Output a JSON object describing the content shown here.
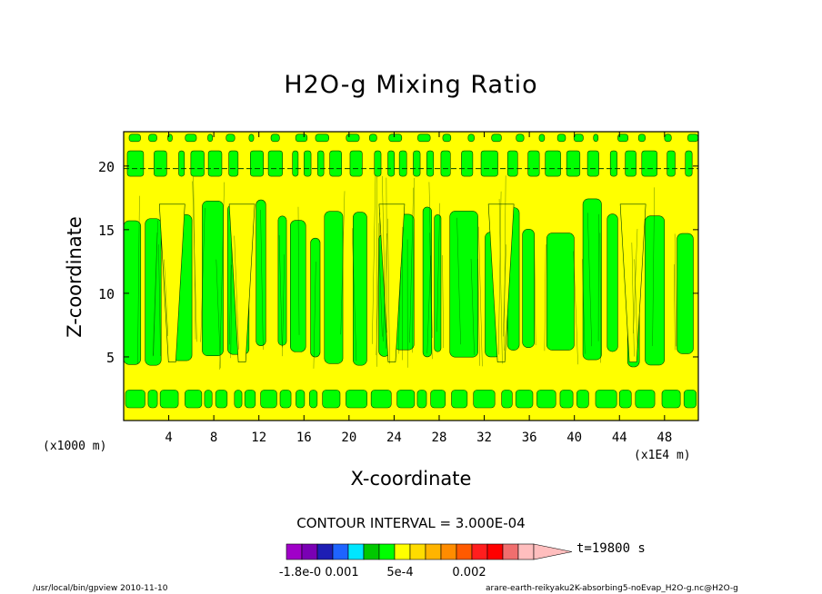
{
  "chart_data": {
    "type": "heatmap",
    "title": "H2O-g Mixing Ratio",
    "xlabel": "X-coordinate",
    "ylabel": "Z-coordinate",
    "x_unit": "(x1E4 m)",
    "y_unit": "(x1000 m)",
    "x_ticks": [
      "4",
      "8",
      "12",
      "16",
      "20",
      "24",
      "28",
      "32",
      "36",
      "40",
      "44",
      "48"
    ],
    "x_tick_values": [
      4,
      8,
      12,
      16,
      20,
      24,
      28,
      32,
      36,
      40,
      44,
      48
    ],
    "y_ticks": [
      "5",
      "10",
      "15",
      "20"
    ],
    "y_tick_values": [
      5,
      10,
      15,
      20
    ],
    "xlim": [
      0,
      51
    ],
    "ylim": [
      0,
      22.7
    ],
    "contour_interval_label": "CONTOUR INTERVAL = 3.000E-04",
    "time_label": "t=19800 s",
    "colorbar_labels": [
      "-1.8e-0",
      "0.001",
      "5e-4",
      "0.002"
    ],
    "colorbar_colors": [
      "#a000c8",
      "#7a00b4",
      "#1e1eb4",
      "#1e64ff",
      "#00e6ff",
      "#00c800",
      "#00ff00",
      "#ffff00",
      "#ffdc00",
      "#ffb400",
      "#ff8c00",
      "#ff5a00",
      "#ff1e1e",
      "#ff0000",
      "#f06e6e",
      "#ffbebe"
    ],
    "field_colors": {
      "high": "#00ff00",
      "low": "#ffff00"
    }
  },
  "footer": {
    "left": "/usr/local/bin/gpview  2010-11-10",
    "right": "arare-earth-reikyaku2K-absorbing5-noEvap_H2O-g.nc@H2O-g"
  }
}
